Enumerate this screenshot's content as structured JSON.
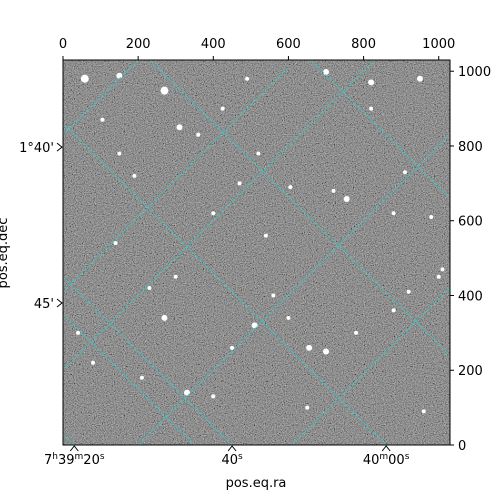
{
  "chart_data": {
    "type": "image",
    "xlabel": "pos.eq.ra",
    "ylabel": "pos.eq.dec",
    "pixel_axes": {
      "xlim": [
        0,
        1030
      ],
      "ylim": [
        0,
        1030
      ],
      "top_ticks": [
        0,
        200,
        400,
        600,
        800,
        1000
      ],
      "right_ticks": [
        0,
        200,
        400,
        600,
        800,
        1000
      ]
    },
    "ra_ticks": [
      {
        "label_main": "7",
        "sup1": "h",
        "mid": "39",
        "sup2": "m",
        "tail": "20",
        "sup3": "s",
        "x_pix": 30
      },
      {
        "label_main": "40",
        "sup1": "s",
        "mid": "",
        "sup2": "",
        "tail": "",
        "sup3": "",
        "x_pix": 450
      },
      {
        "label_main": "40",
        "sup1": "m",
        "mid": "00",
        "sup2": "s",
        "tail": "",
        "sup3": "",
        "x_pix": 860
      }
    ],
    "dec_ticks": [
      {
        "label": "1°40'",
        "y_pix": 797
      },
      {
        "label": "45'",
        "y_pix": 380
      }
    ],
    "grid": true,
    "grid_color": "#33cccc",
    "colormap": "gray"
  }
}
